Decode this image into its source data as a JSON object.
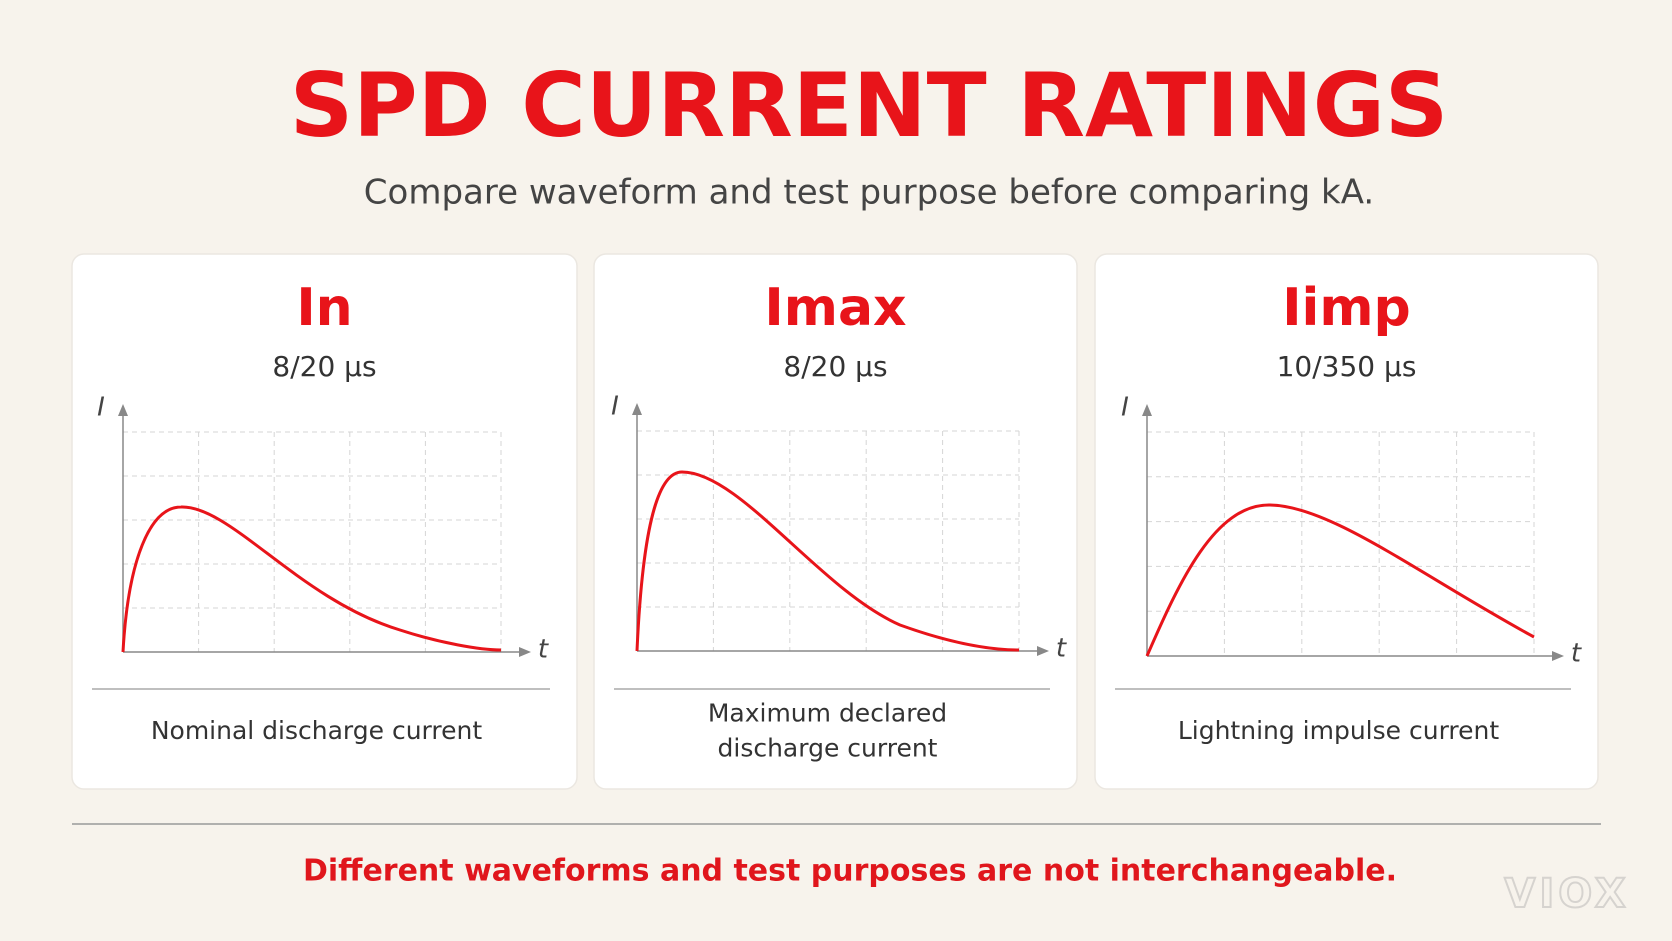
{
  "header": {
    "title": "SPD CURRENT RATINGS",
    "subtitle": "Compare waveform and test purpose before comparing kA."
  },
  "cards": [
    {
      "symbol": "In",
      "waveform": "8/20 µs",
      "y_axis_label": "I",
      "x_axis_label": "t",
      "description_lines": [
        "Nominal discharge current"
      ]
    },
    {
      "symbol": "Imax",
      "waveform": "8/20 µs",
      "y_axis_label": "I",
      "x_axis_label": "t",
      "description_lines": [
        "Maximum declared",
        "discharge current"
      ]
    },
    {
      "symbol": "Iimp",
      "waveform": "10/350 µs",
      "y_axis_label": "I",
      "x_axis_label": "t",
      "description_lines": [
        "Lightning impulse current"
      ]
    }
  ],
  "footer": {
    "note": "Different waveforms and test purposes are not interchangeable.",
    "logo": "VIOX"
  }
}
